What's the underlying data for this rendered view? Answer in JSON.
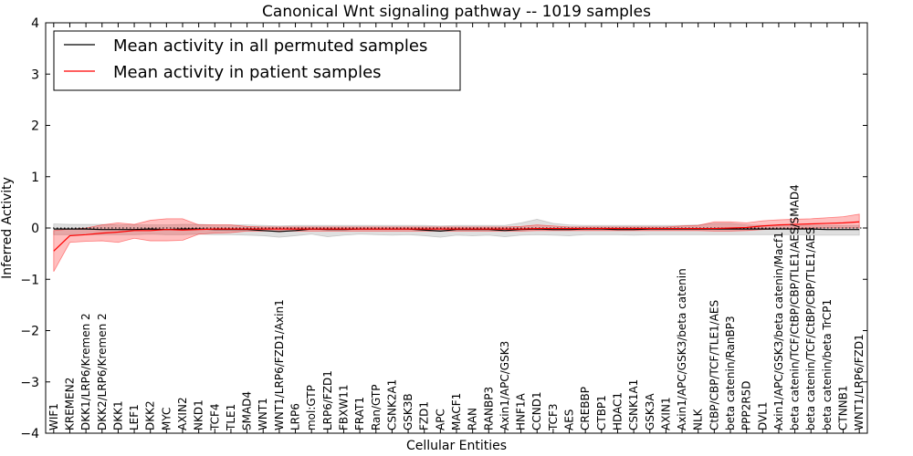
{
  "chart_data": {
    "type": "line",
    "title": "Canonical Wnt signaling pathway -- 1019 samples",
    "xlabel": "Cellular Entities",
    "ylabel": "Inferred Activity",
    "ylim": [
      -4,
      4
    ],
    "yticks": [
      "−4",
      "−3",
      "−2",
      "−1",
      "0",
      "1",
      "2",
      "3",
      "4"
    ],
    "legend_position": "upper-left",
    "categories": [
      "WIF1",
      "KREMEN2",
      "DKK1/LRP6/Kremen 2",
      "DKK2/LRP6/Kremen 2",
      "DKK1",
      "LEF1",
      "DKK2",
      "MYC",
      "AXIN2",
      "NKD1",
      "TCF4",
      "TLE1",
      "SMAD4",
      "WNT1",
      "WNT1/LRP6/FZD1/Axin1",
      "LRP6",
      "mol:GTP",
      "LRP6/FZD1",
      "FBXW11",
      "FRAT1",
      "Ran/GTP",
      "CSNK2A1",
      "GSK3B",
      "FZD1",
      "APC",
      "MACF1",
      "RAN",
      "RANBP3",
      "Axin1/APC/GSK3",
      "HNF1A",
      "CCND1",
      "TCF3",
      "AES",
      "CREBBP",
      "CTBP1",
      "HDAC1",
      "CSNK1A1",
      "GSK3A",
      "AXIN1",
      "Axin1/APC/GSK3/beta catenin",
      "NLK",
      "CtBP/CBP/TCF/TLE1/AES",
      "beta catenin/RanBP3",
      "PPP2R5D",
      "DVL1",
      "Axin1/APC/GSK3/beta catenin/Macf1",
      "beta catenin/TCF/CtBP/CBP/TLE1/AES/SMAD4",
      "beta catenin/TCF/CtBP/CBP/TLE1/AES",
      "beta catenin/beta TrCP1",
      "CTNNB1",
      "WNT1/LRP6/FZD1"
    ],
    "series": [
      {
        "name": "Mean activity in all permuted samples",
        "color": "#000000",
        "values": [
          -0.02,
          -0.02,
          -0.02,
          -0.03,
          -0.03,
          -0.03,
          -0.02,
          -0.03,
          -0.02,
          -0.02,
          -0.03,
          -0.03,
          -0.03,
          -0.05,
          -0.07,
          -0.05,
          -0.02,
          -0.03,
          -0.03,
          -0.02,
          -0.02,
          -0.02,
          -0.02,
          -0.04,
          -0.06,
          -0.03,
          -0.03,
          -0.03,
          -0.05,
          -0.03,
          -0.02,
          -0.03,
          -0.03,
          -0.02,
          -0.02,
          -0.03,
          -0.03,
          -0.02,
          -0.02,
          -0.02,
          -0.02,
          -0.02,
          -0.02,
          -0.02,
          -0.02,
          -0.02,
          -0.02,
          -0.02,
          -0.03,
          -0.03,
          -0.03
        ],
        "band_upper": [
          0.08,
          0.07,
          0.07,
          0.07,
          0.06,
          0.06,
          0.06,
          0.06,
          0.07,
          0.07,
          0.06,
          0.06,
          0.06,
          0.05,
          0.04,
          0.05,
          0.05,
          0.05,
          0.05,
          0.05,
          0.05,
          0.05,
          0.05,
          0.05,
          0.04,
          0.05,
          0.05,
          0.05,
          0.05,
          0.1,
          0.17,
          0.09,
          0.06,
          0.05,
          0.05,
          0.05,
          0.05,
          0.05,
          0.05,
          0.05,
          0.06,
          0.09,
          0.09,
          0.06,
          0.05,
          0.05,
          0.05,
          0.05,
          0.05,
          0.05,
          0.05
        ],
        "band_lower": [
          -0.13,
          -0.13,
          -0.13,
          -0.13,
          -0.13,
          -0.13,
          -0.12,
          -0.13,
          -0.13,
          -0.12,
          -0.13,
          -0.13,
          -0.14,
          -0.15,
          -0.18,
          -0.15,
          -0.12,
          -0.17,
          -0.14,
          -0.12,
          -0.13,
          -0.14,
          -0.13,
          -0.15,
          -0.18,
          -0.14,
          -0.15,
          -0.14,
          -0.17,
          -0.14,
          -0.13,
          -0.14,
          -0.15,
          -0.13,
          -0.13,
          -0.13,
          -0.14,
          -0.13,
          -0.13,
          -0.13,
          -0.13,
          -0.13,
          -0.13,
          -0.13,
          -0.13,
          -0.13,
          -0.13,
          -0.14,
          -0.14,
          -0.14,
          -0.14
        ]
      },
      {
        "name": "Mean activity in patient samples",
        "color": "#ff0000",
        "values": [
          -0.45,
          -0.15,
          -0.13,
          -0.1,
          -0.08,
          -0.05,
          -0.05,
          -0.03,
          -0.04,
          -0.03,
          -0.02,
          -0.02,
          -0.02,
          -0.02,
          -0.02,
          -0.02,
          -0.02,
          -0.02,
          -0.02,
          -0.02,
          -0.02,
          -0.02,
          -0.02,
          -0.02,
          -0.02,
          -0.02,
          -0.02,
          -0.02,
          -0.02,
          -0.02,
          -0.01,
          -0.01,
          -0.01,
          -0.01,
          -0.01,
          -0.01,
          -0.01,
          -0.01,
          -0.01,
          -0.01,
          -0.01,
          -0.01,
          0.0,
          0.01,
          0.04,
          0.06,
          0.07,
          0.08,
          0.09,
          0.1,
          0.12
        ],
        "band_upper": [
          -0.05,
          -0.02,
          0.0,
          0.06,
          0.1,
          0.07,
          0.15,
          0.18,
          0.18,
          0.06,
          0.06,
          0.06,
          0.03,
          0.02,
          0.02,
          0.02,
          0.02,
          0.02,
          0.02,
          0.02,
          0.02,
          0.02,
          0.02,
          0.02,
          0.02,
          0.02,
          0.02,
          0.02,
          0.02,
          0.03,
          0.06,
          0.04,
          0.02,
          0.02,
          0.02,
          0.02,
          0.02,
          0.02,
          0.02,
          0.04,
          0.05,
          0.12,
          0.12,
          0.1,
          0.14,
          0.16,
          0.17,
          0.18,
          0.2,
          0.22,
          0.27
        ],
        "band_lower": [
          -0.85,
          -0.28,
          -0.26,
          -0.25,
          -0.28,
          -0.2,
          -0.25,
          -0.25,
          -0.24,
          -0.12,
          -0.1,
          -0.09,
          -0.06,
          -0.06,
          -0.06,
          -0.06,
          -0.06,
          -0.06,
          -0.06,
          -0.06,
          -0.06,
          -0.06,
          -0.06,
          -0.06,
          -0.06,
          -0.06,
          -0.06,
          -0.06,
          -0.06,
          -0.06,
          -0.05,
          -0.05,
          -0.05,
          -0.05,
          -0.05,
          -0.05,
          -0.05,
          -0.05,
          -0.05,
          -0.05,
          -0.05,
          -0.06,
          -0.06,
          -0.05,
          -0.03,
          -0.02,
          -0.01,
          0.0,
          0.0,
          0.0,
          0.0
        ]
      }
    ]
  }
}
